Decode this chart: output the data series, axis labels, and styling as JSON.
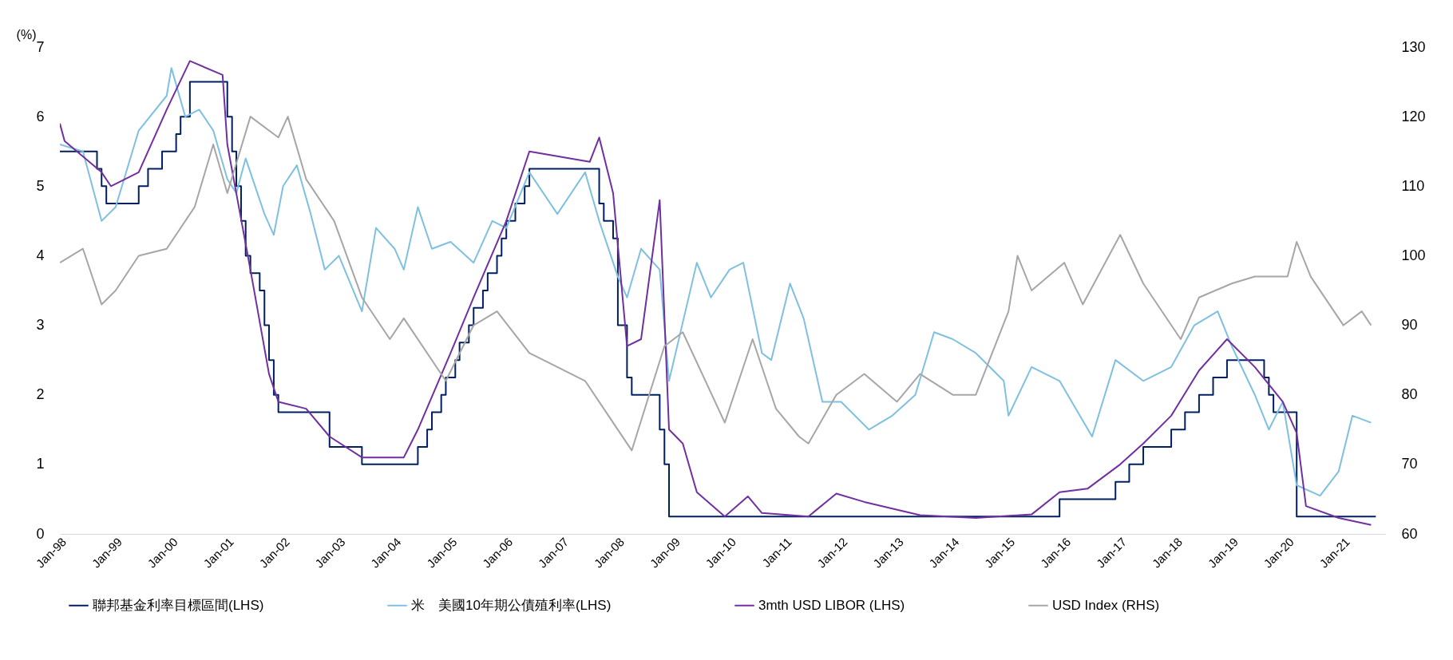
{
  "chart_data": {
    "type": "line",
    "ylabel": "(%)",
    "legend": "bottom",
    "xlim": [
      "1998-01",
      "2021-10"
    ],
    "xticks": [
      {
        "value": "1998-01",
        "label": "Jan-98"
      },
      {
        "value": "1999-01",
        "label": "Jan-99"
      },
      {
        "value": "2000-01",
        "label": "Jan-00"
      },
      {
        "value": "2001-01",
        "label": "Jan-01"
      },
      {
        "value": "2002-01",
        "label": "Jan-02"
      },
      {
        "value": "2003-01",
        "label": "Jan-03"
      },
      {
        "value": "2004-01",
        "label": "Jan-04"
      },
      {
        "value": "2005-01",
        "label": "Jan-05"
      },
      {
        "value": "2006-01",
        "label": "Jan-06"
      },
      {
        "value": "2007-01",
        "label": "Jan-07"
      },
      {
        "value": "2008-01",
        "label": "Jan-08"
      },
      {
        "value": "2009-01",
        "label": "Jan-09"
      },
      {
        "value": "2010-01",
        "label": "Jan-10"
      },
      {
        "value": "2011-01",
        "label": "Jan-11"
      },
      {
        "value": "2012-01",
        "label": "Jan-12"
      },
      {
        "value": "2013-01",
        "label": "Jan-13"
      },
      {
        "value": "2014-01",
        "label": "Jan-14"
      },
      {
        "value": "2015-01",
        "label": "Jan-15"
      },
      {
        "value": "2016-01",
        "label": "Jan-16"
      },
      {
        "value": "2017-01",
        "label": "Jan-17"
      },
      {
        "value": "2018-01",
        "label": "Jan-18"
      },
      {
        "value": "2019-01",
        "label": "Jan-19"
      },
      {
        "value": "2020-01",
        "label": "Jan-20"
      },
      {
        "value": "2021-01",
        "label": "Jan-21"
      }
    ],
    "ylim": [
      0,
      7
    ],
    "yticks": [
      0,
      1,
      2,
      3,
      4,
      5,
      6,
      7
    ],
    "y2lim": [
      60,
      130
    ],
    "y2ticks": [
      60,
      70,
      80,
      90,
      100,
      110,
      120,
      130
    ],
    "series": [
      {
        "name": "聯邦基金利率目標區間(LHS)",
        "color": "#002060",
        "type": "step",
        "x": [
          "1998-01",
          "1998-09",
          "1998-10",
          "1998-11",
          "1999-06",
          "1999-08",
          "1999-11",
          "2000-02",
          "2000-03",
          "2000-05",
          "2001-01",
          "2001-02",
          "2001-03",
          "2001-04",
          "2001-05",
          "2001-06",
          "2001-08",
          "2001-09",
          "2001-10",
          "2001-11",
          "2001-12",
          "2002-11",
          "2003-06",
          "2004-06",
          "2004-08",
          "2004-09",
          "2004-11",
          "2004-12",
          "2005-02",
          "2005-03",
          "2005-05",
          "2005-06",
          "2005-08",
          "2005-09",
          "2005-11",
          "2005-12",
          "2006-01",
          "2006-03",
          "2006-05",
          "2006-06",
          "2007-09",
          "2007-10",
          "2007-12",
          "2008-01",
          "2008-03",
          "2008-04",
          "2008-10",
          "2008-11",
          "2008-12",
          "2015-12",
          "2016-12",
          "2017-03",
          "2017-06",
          "2017-12",
          "2018-03",
          "2018-06",
          "2018-09",
          "2018-12",
          "2019-08",
          "2019-09",
          "2019-10",
          "2020-03",
          "2021-08"
        ],
        "values": [
          5.5,
          5.25,
          5.0,
          4.75,
          5.0,
          5.25,
          5.5,
          5.75,
          6.0,
          6.5,
          6.0,
          5.5,
          5.0,
          4.5,
          4.0,
          3.75,
          3.5,
          3.0,
          2.5,
          2.0,
          1.75,
          1.25,
          1.0,
          1.25,
          1.5,
          1.75,
          2.0,
          2.25,
          2.5,
          2.75,
          3.0,
          3.25,
          3.5,
          3.75,
          4.0,
          4.25,
          4.5,
          4.75,
          5.0,
          5.25,
          4.75,
          4.5,
          4.25,
          3.0,
          2.25,
          2.0,
          1.5,
          1.0,
          0.25,
          0.5,
          0.75,
          1.0,
          1.25,
          1.5,
          1.75,
          2.0,
          2.25,
          2.5,
          2.25,
          2.0,
          1.75,
          0.25,
          0.25
        ]
      },
      {
        "name": "米　美國10年期公債殖利率(LHS)",
        "color": "#7fc0e0",
        "type": "line",
        "x": [
          "1998-01",
          "1998-06",
          "1998-10",
          "1999-01",
          "1999-06",
          "1999-12",
          "2000-01",
          "2000-04",
          "2000-07",
          "2000-10",
          "2001-01",
          "2001-03",
          "2001-05",
          "2001-09",
          "2001-11",
          "2002-01",
          "2002-04",
          "2002-07",
          "2002-10",
          "2003-01",
          "2003-06",
          "2003-09",
          "2004-01",
          "2004-03",
          "2004-06",
          "2004-09",
          "2005-01",
          "2005-06",
          "2005-10",
          "2006-01",
          "2006-06",
          "2006-12",
          "2007-06",
          "2007-09",
          "2008-01",
          "2008-03",
          "2008-06",
          "2008-10",
          "2008-12",
          "2009-06",
          "2009-09",
          "2010-01",
          "2010-04",
          "2010-08",
          "2010-10",
          "2011-02",
          "2011-05",
          "2011-09",
          "2012-01",
          "2012-07",
          "2012-12",
          "2013-05",
          "2013-09",
          "2014-01",
          "2014-06",
          "2014-12",
          "2015-01",
          "2015-06",
          "2015-12",
          "2016-07",
          "2016-12",
          "2017-06",
          "2017-12",
          "2018-05",
          "2018-10",
          "2019-01",
          "2019-06",
          "2019-09",
          "2019-12",
          "2020-03",
          "2020-08",
          "2020-12",
          "2021-03",
          "2021-07"
        ],
        "values": [
          5.6,
          5.5,
          4.5,
          4.7,
          5.8,
          6.3,
          6.7,
          6.0,
          6.1,
          5.8,
          5.1,
          4.9,
          5.4,
          4.6,
          4.3,
          5.0,
          5.3,
          4.6,
          3.8,
          4.0,
          3.2,
          4.4,
          4.1,
          3.8,
          4.7,
          4.1,
          4.2,
          3.9,
          4.5,
          4.4,
          5.2,
          4.6,
          5.2,
          4.5,
          3.7,
          3.4,
          4.1,
          3.8,
          2.2,
          3.9,
          3.4,
          3.8,
          3.9,
          2.6,
          2.5,
          3.6,
          3.1,
          1.9,
          1.9,
          1.5,
          1.7,
          2.0,
          2.9,
          2.8,
          2.6,
          2.2,
          1.7,
          2.4,
          2.2,
          1.4,
          2.5,
          2.2,
          2.4,
          3.0,
          3.2,
          2.7,
          2.0,
          1.5,
          1.9,
          0.7,
          0.55,
          0.9,
          1.7,
          1.6
        ]
      },
      {
        "name": "3mth USD LIBOR (LHS)",
        "color": "#7030a0",
        "type": "line",
        "x": [
          "1998-01",
          "1998-02",
          "1998-10",
          "1998-12",
          "1999-06",
          "1999-12",
          "2000-05",
          "2000-12",
          "2001-01",
          "2001-06",
          "2001-10",
          "2001-12",
          "2002-06",
          "2002-11",
          "2003-06",
          "2004-03",
          "2004-06",
          "2005-01",
          "2005-06",
          "2006-01",
          "2006-06",
          "2007-07",
          "2007-09",
          "2007-12",
          "2008-03",
          "2008-06",
          "2008-10",
          "2008-12",
          "2009-03",
          "2009-06",
          "2009-12",
          "2010-05",
          "2010-08",
          "2011-06",
          "2011-12",
          "2012-06",
          "2013-06",
          "2014-06",
          "2015-06",
          "2015-12",
          "2016-06",
          "2017-01",
          "2017-06",
          "2017-12",
          "2018-06",
          "2018-12",
          "2019-06",
          "2019-12",
          "2020-03",
          "2020-05",
          "2020-12",
          "2021-07"
        ],
        "values": [
          5.9,
          5.65,
          5.2,
          5.0,
          5.2,
          6.1,
          6.8,
          6.6,
          5.6,
          3.8,
          2.3,
          1.9,
          1.8,
          1.4,
          1.1,
          1.1,
          1.5,
          2.6,
          3.4,
          4.5,
          5.5,
          5.35,
          5.7,
          4.9,
          2.7,
          2.8,
          4.8,
          1.5,
          1.3,
          0.6,
          0.25,
          0.54,
          0.3,
          0.25,
          0.58,
          0.46,
          0.27,
          0.23,
          0.28,
          0.6,
          0.65,
          1.0,
          1.3,
          1.7,
          2.35,
          2.8,
          2.4,
          1.9,
          1.45,
          0.4,
          0.23,
          0.13
        ]
      },
      {
        "name": "USD Index (RHS)",
        "color": "#a6a6a6",
        "type": "line",
        "axis": "y2",
        "x": [
          "1998-01",
          "1998-06",
          "1998-10",
          "1999-01",
          "1999-06",
          "1999-12",
          "2000-06",
          "2000-10",
          "2001-01",
          "2001-06",
          "2001-12",
          "2002-02",
          "2002-06",
          "2002-12",
          "2003-06",
          "2003-12",
          "2004-03",
          "2004-12",
          "2005-06",
          "2005-11",
          "2006-06",
          "2006-12",
          "2007-06",
          "2007-12",
          "2008-04",
          "2008-11",
          "2009-03",
          "2009-12",
          "2010-06",
          "2010-11",
          "2011-04",
          "2011-06",
          "2011-12",
          "2012-06",
          "2013-01",
          "2013-06",
          "2014-01",
          "2014-06",
          "2015-01",
          "2015-03",
          "2015-06",
          "2016-01",
          "2016-05",
          "2017-01",
          "2017-06",
          "2018-02",
          "2018-06",
          "2019-01",
          "2019-06",
          "2020-01",
          "2020-03",
          "2020-06",
          "2021-01",
          "2021-05",
          "2021-07"
        ],
        "values": [
          99,
          101,
          93,
          95,
          100,
          101,
          107,
          116,
          109,
          120,
          117,
          120,
          111,
          105,
          94,
          88,
          91,
          82,
          90,
          92,
          86,
          84,
          82,
          76,
          72,
          87,
          89,
          76,
          88,
          78,
          74,
          73,
          80,
          83,
          79,
          83,
          80,
          80,
          92,
          100,
          95,
          99,
          93,
          103,
          96,
          88,
          94,
          96,
          97,
          97,
          102,
          97,
          90,
          92,
          90
        ]
      }
    ]
  }
}
